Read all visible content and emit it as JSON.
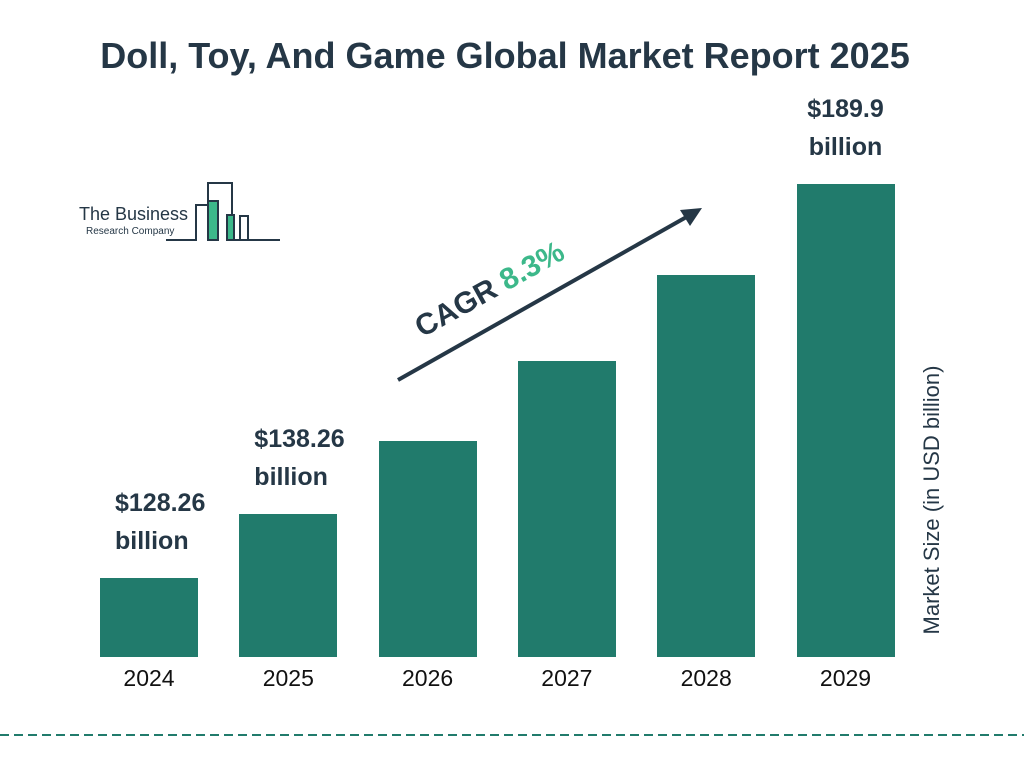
{
  "chart_data": {
    "type": "bar",
    "title": "Doll, Toy, And Game Global Market Report 2025",
    "categories": [
      "2024",
      "2025",
      "2026",
      "2027",
      "2028",
      "2029"
    ],
    "values": [
      128.26,
      138.26,
      149.7,
      162.2,
      175.6,
      189.9
    ],
    "value_labels": [
      "$128.26 billion",
      "$138.26 billion",
      null,
      null,
      null,
      "$189.9 billion"
    ],
    "color": "#217b6c",
    "y_axis_label": "Market Size (in USD billion)",
    "cagr_label": "CAGR",
    "cagr_value": "8.3%",
    "logo": {
      "line1": "The Business",
      "line2": "Research Company"
    }
  }
}
